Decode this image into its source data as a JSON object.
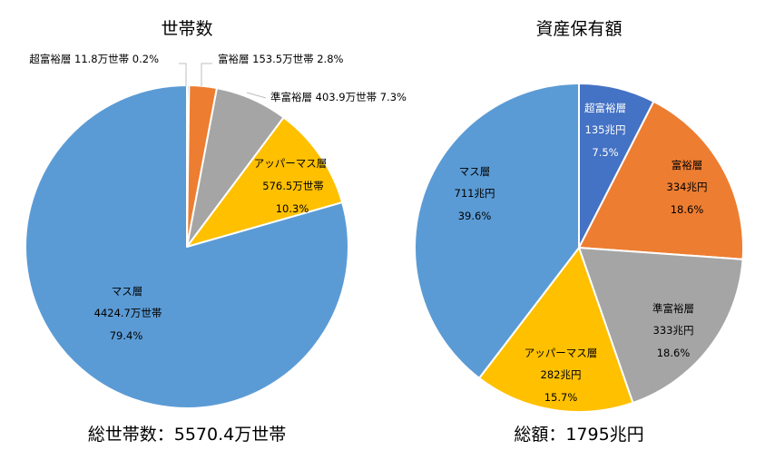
{
  "chart_data": [
    {
      "type": "pie",
      "title": "世帯数",
      "total_label": "総世帯数：5570.4万世帯",
      "slices": [
        {
          "name": "超富裕層",
          "amount": "11.8万世帯",
          "percent": "0.2%",
          "value": 11.8,
          "color": "#4472C4"
        },
        {
          "name": "富裕層",
          "amount": "153.5万世帯",
          "percent": "2.8%",
          "value": 153.5,
          "color": "#ED7D31"
        },
        {
          "name": "準富裕層",
          "amount": "403.9万世帯",
          "percent": "7.3%",
          "value": 403.9,
          "color": "#A5A5A5"
        },
        {
          "name": "アッパーマス層",
          "amount": "576.5万世帯",
          "percent": "10.3%",
          "value": 576.5,
          "color": "#FFC000"
        },
        {
          "name": "マス層",
          "amount": "4424.7万世帯",
          "percent": "79.4%",
          "value": 4424.7,
          "color": "#5B9BD5"
        }
      ]
    },
    {
      "type": "pie",
      "title": "資産保有額",
      "total_label": "総額：1795兆円",
      "slices": [
        {
          "name": "超富裕層",
          "amount": "135兆円",
          "percent": "7.5%",
          "value": 135,
          "color": "#4472C4"
        },
        {
          "name": "富裕層",
          "amount": "334兆円",
          "percent": "18.6%",
          "value": 334,
          "color": "#ED7D31"
        },
        {
          "name": "準富裕層",
          "amount": "333兆円",
          "percent": "18.6%",
          "value": 333,
          "color": "#A5A5A5"
        },
        {
          "name": "アッパーマス層",
          "amount": "282兆円",
          "percent": "15.7%",
          "value": 282,
          "color": "#FFC000"
        },
        {
          "name": "マス層",
          "amount": "711兆円",
          "percent": "39.6%",
          "value": 711,
          "color": "#5B9BD5"
        }
      ]
    }
  ]
}
